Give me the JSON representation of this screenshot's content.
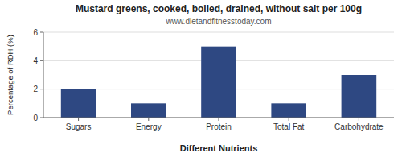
{
  "chart_data": {
    "type": "bar",
    "title": "Mustard greens, cooked, boiled, drained, without salt per 100g",
    "subtitle": "www.dietandfitnesstoday.com",
    "xlabel": "Different Nutrients",
    "ylabel": "Percentage of RDH (%)",
    "categories": [
      "Sugars",
      "Energy",
      "Protein",
      "Total Fat",
      "Carbohydrate"
    ],
    "values": [
      2.0,
      1.0,
      5.0,
      1.0,
      3.0
    ],
    "color": "#2e4882",
    "ylim": [
      0,
      6
    ],
    "yticks": [
      0,
      2,
      4,
      6
    ],
    "grid": true
  }
}
